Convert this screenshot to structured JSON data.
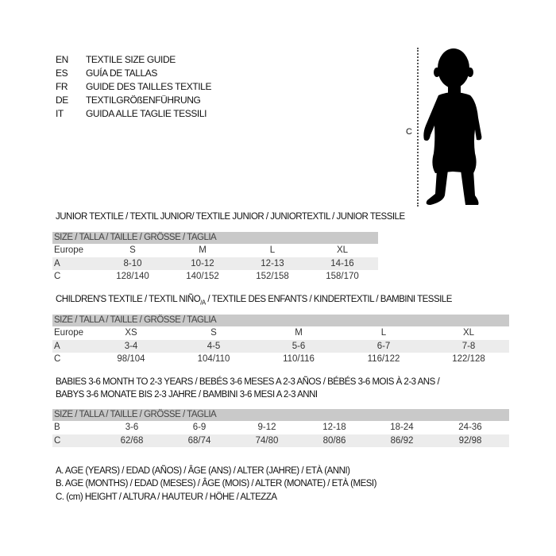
{
  "languages": [
    {
      "code": "EN",
      "text": "TEXTILE SIZE GUIDE"
    },
    {
      "code": "ES",
      "text": "GUÍA DE TALLAS"
    },
    {
      "code": "FR",
      "text": "GUIDE DES TAILLES TEXTILE"
    },
    {
      "code": "DE",
      "text": "TEXTILGRÖßENFÜHRUNG"
    },
    {
      "code": "IT",
      "text": "GUIDA ALLE TAGLIE TESSILI"
    }
  ],
  "figure": {
    "measure_label": "C",
    "icon": "child-silhouette"
  },
  "junior": {
    "title": "JUNIOR TEXTILE / TEXTIL JUNIOR/ TEXTILE JUNIOR / JUNIORTEXTIL / JUNIOR TESSILE",
    "header": "SIZE / TALLA / TAILLE / GRÖSSE / TAGLIA",
    "rows": [
      {
        "label": "Europe",
        "cells": [
          "S",
          "M",
          "L",
          "XL"
        ]
      },
      {
        "label": "A",
        "cells": [
          "8-10",
          "10-12",
          "12-13",
          "14-16"
        ]
      },
      {
        "label": "C",
        "cells": [
          "128/140",
          "140/152",
          "152/158",
          "158/170"
        ]
      }
    ]
  },
  "children": {
    "title_main": "CHILDREN'S TEXTILE / TEXTIL NIÑO",
    "title_sub": "/A",
    "title_rest": " / TEXTILE DES ENFANTS / KINDERTEXTIL / BAMBINI TESSILE",
    "header": "SIZE / TALLA / TAILLE / GRÖSSE / TAGLIA",
    "rows": [
      {
        "label": "Europe",
        "cells": [
          "XS",
          "S",
          "M",
          "L",
          "XL"
        ]
      },
      {
        "label": "A",
        "cells": [
          "3-4",
          "4-5",
          "5-6",
          "6-7",
          "7-8"
        ]
      },
      {
        "label": "C",
        "cells": [
          "98/104",
          "104/110",
          "110/116",
          "116/122",
          "122/128"
        ]
      }
    ]
  },
  "babies": {
    "title_line1": "BABIES 3-6 MONTH TO 2-3 YEARS / BEBÉS 3-6 MESES A 2-3 AÑOS / BÉBÉS 3-6 MOIS À 2-3 ANS /",
    "title_line2": "BABYS 3-6 MONATE BIS 2-3 JAHRE / BAMBINI 3-6 MESI A 2-3 ANNI",
    "header": "SIZE / TALLA / TAILLE / GRÖSSE / TAGLIA",
    "rows": [
      {
        "label": "B",
        "cells": [
          "3-6",
          "6-9",
          "9-12",
          "12-18",
          "18-24",
          "24-36"
        ]
      },
      {
        "label": "C",
        "cells": [
          "62/68",
          "68/74",
          "74/80",
          "80/86",
          "86/92",
          "92/98"
        ]
      }
    ]
  },
  "legend": [
    "A. AGE (YEARS) / EDAD (AÑOS) / ÂGE (ANS) / ALTER (JAHRE) / ETÀ (ANNI)",
    "B. AGE (MONTHS) / EDAD (MESES) / ÂGE (MOIS) / ALTER (MONATE) / ETÀ (MESI)",
    "C. (cm) HEIGHT / ALTURA / HAUTEUR / HÖHE / ALTEZZA"
  ]
}
